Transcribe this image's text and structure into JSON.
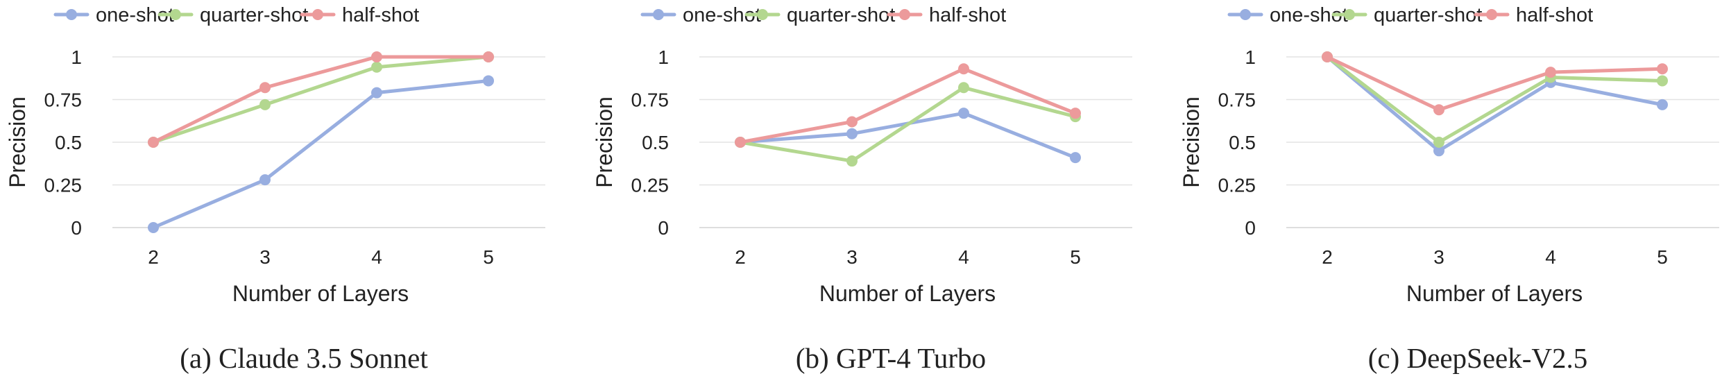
{
  "colors": {
    "one-shot": "#98aee0",
    "quarter-shot": "#b3d78f",
    "half-shot": "#ec9a9b",
    "grid": "#e3e3e3",
    "axis": "#d4d4d4"
  },
  "chart_data": [
    {
      "type": "line",
      "caption": "(a) Claude 3.5 Sonnet",
      "xlabel": "Number of Layers",
      "ylabel": "Precision",
      "categories": [
        "2",
        "3",
        "4",
        "5"
      ],
      "yticks": [
        "0",
        "0.25",
        "0.5",
        "0.75",
        "1"
      ],
      "ylim": [
        0,
        1
      ],
      "grid": true,
      "legend": "top",
      "series": [
        {
          "name": "one-shot",
          "values": [
            0.0,
            0.28,
            0.79,
            0.86
          ]
        },
        {
          "name": "quarter-shot",
          "values": [
            0.5,
            0.72,
            0.94,
            1.0
          ]
        },
        {
          "name": "half-shot",
          "values": [
            0.5,
            0.82,
            1.0,
            1.0
          ]
        }
      ]
    },
    {
      "type": "line",
      "caption": "(b) GPT-4 Turbo",
      "xlabel": "Number of Layers",
      "ylabel": "Precision",
      "categories": [
        "2",
        "3",
        "4",
        "5"
      ],
      "yticks": [
        "0",
        "0.25",
        "0.5",
        "0.75",
        "1"
      ],
      "ylim": [
        0,
        1
      ],
      "grid": true,
      "legend": "top",
      "series": [
        {
          "name": "one-shot",
          "values": [
            0.5,
            0.55,
            0.67,
            0.41
          ]
        },
        {
          "name": "quarter-shot",
          "values": [
            0.5,
            0.39,
            0.82,
            0.65
          ]
        },
        {
          "name": "half-shot",
          "values": [
            0.5,
            0.62,
            0.93,
            0.67
          ]
        }
      ]
    },
    {
      "type": "line",
      "caption": "(c) DeepSeek-V2.5",
      "xlabel": "Number of Layers",
      "ylabel": "Precision",
      "categories": [
        "2",
        "3",
        "4",
        "5"
      ],
      "yticks": [
        "0",
        "0.25",
        "0.5",
        "0.75",
        "1"
      ],
      "ylim": [
        0,
        1
      ],
      "grid": true,
      "legend": "top",
      "series": [
        {
          "name": "one-shot",
          "values": [
            1.0,
            0.45,
            0.85,
            0.72
          ]
        },
        {
          "name": "quarter-shot",
          "values": [
            1.0,
            0.5,
            0.88,
            0.86
          ]
        },
        {
          "name": "half-shot",
          "values": [
            1.0,
            0.69,
            0.91,
            0.93
          ]
        }
      ]
    }
  ]
}
